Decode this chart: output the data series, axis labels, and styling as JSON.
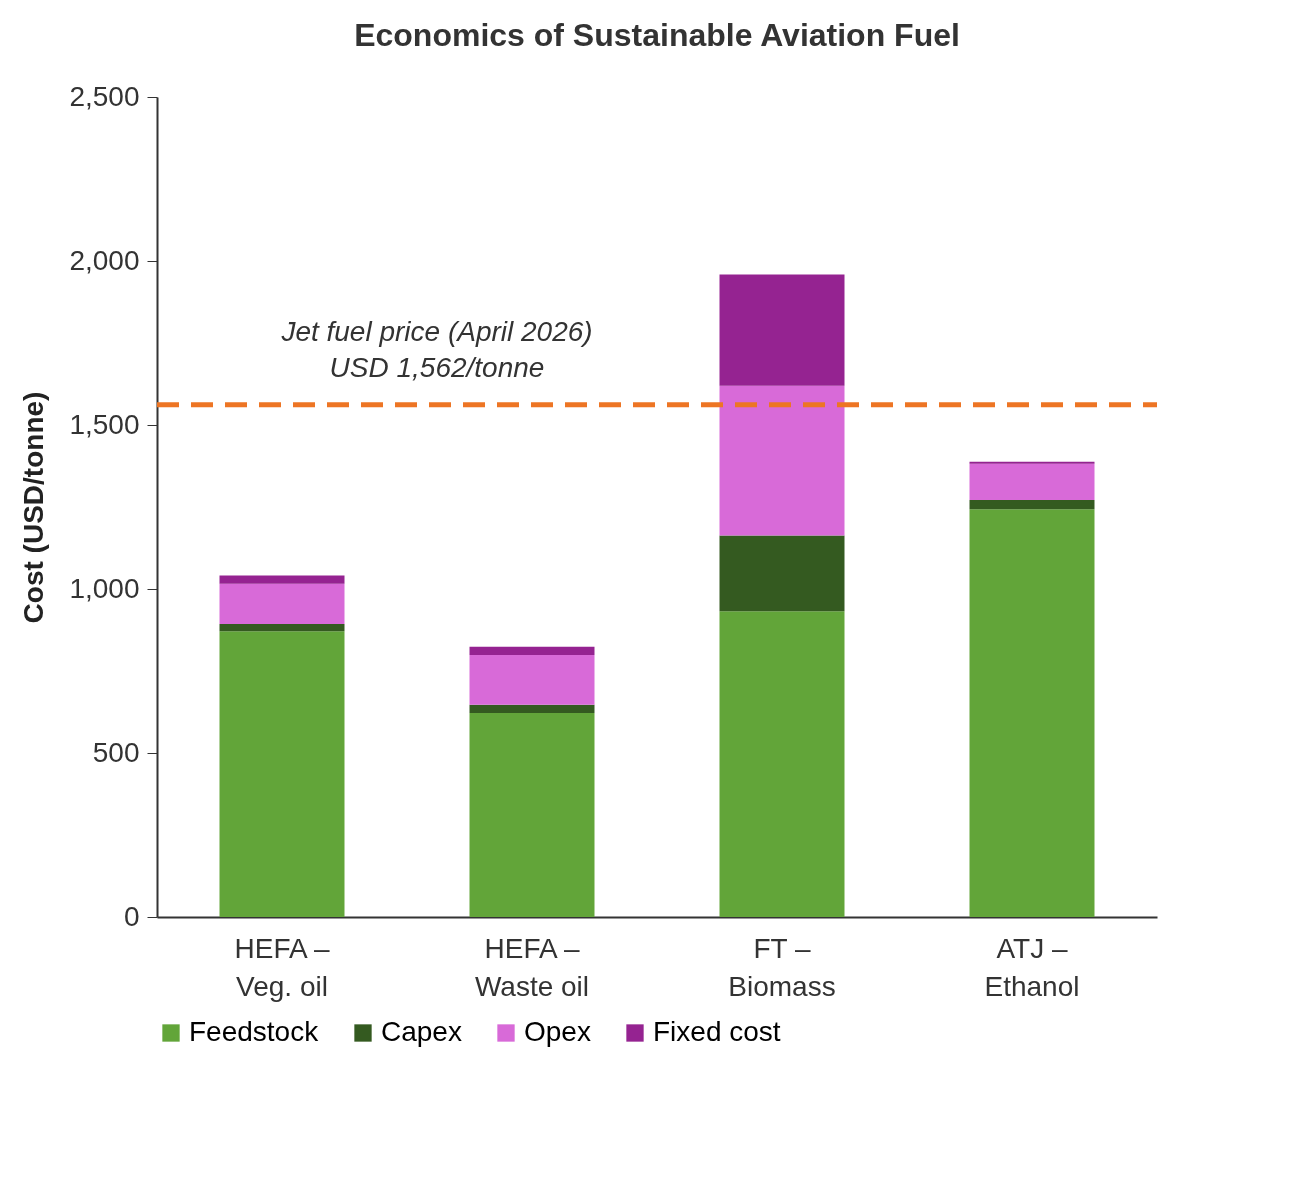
{
  "chart_data": {
    "type": "bar",
    "stacked": true,
    "title": "Economics of Sustainable Aviation Fuel",
    "ylabel": "Cost (USD/tonne)",
    "categories": [
      "HEFA –\nVeg. oil",
      "HEFA –\nWaste oil",
      "FT –\nBiomass",
      "ATJ –\nEthanol"
    ],
    "series": [
      {
        "name": "Feedstock",
        "color": "#62a539",
        "values": [
          871,
          622,
          932,
          1243
        ]
      },
      {
        "name": "Capex",
        "color": "#345a20",
        "values": [
          22,
          25,
          231,
          28
        ]
      },
      {
        "name": "Opex",
        "color": "#d86ad8",
        "values": [
          123,
          152,
          457,
          111
        ]
      },
      {
        "name": "Fixed cost",
        "color": "#952391",
        "values": [
          25,
          25,
          339,
          6
        ]
      }
    ],
    "ylim": [
      0,
      2500
    ],
    "yticks": [
      0,
      500,
      {
        "value": 1000,
        "label": "1,000"
      },
      {
        "value": 1500,
        "label": "1,500"
      },
      {
        "value": 2000,
        "label": "2,000"
      },
      {
        "value": 2500,
        "label": "2,500"
      }
    ],
    "grid": false,
    "legend": "bottom",
    "ref_lines": [
      {
        "axis": "y",
        "value": 1562,
        "label": "Jet fuel price (April 2026)\nUSD 1,562/tonne",
        "color": "#ed7524",
        "line_style": "dashed"
      }
    ]
  }
}
